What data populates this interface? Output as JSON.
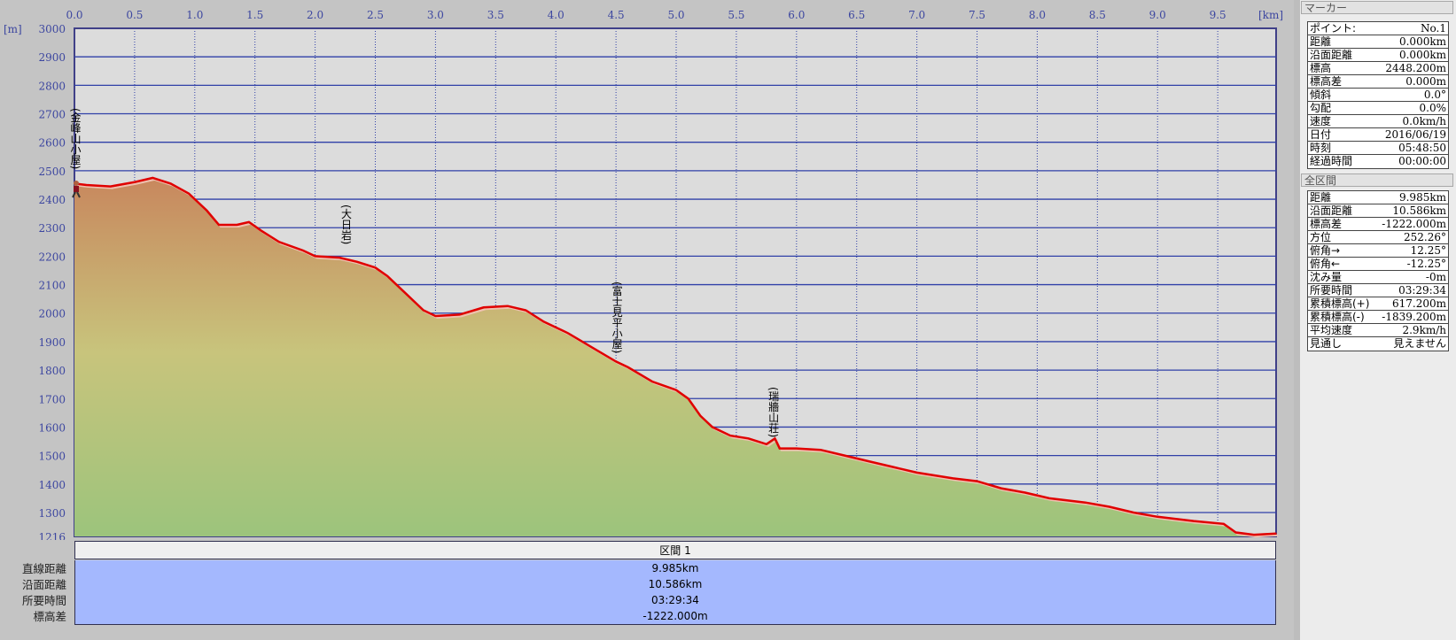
{
  "chart_data": {
    "type": "area",
    "title": "",
    "xlabel": "[km]",
    "ylabel": "[m]",
    "xlim": [
      0,
      9.985
    ],
    "ylim": [
      1216,
      3000
    ],
    "x_ticks": [
      "0.0",
      "0.5",
      "1.0",
      "1.5",
      "2.0",
      "2.5",
      "3.0",
      "3.5",
      "4.0",
      "4.5",
      "5.0",
      "5.5",
      "6.0",
      "6.5",
      "7.0",
      "7.5",
      "8.0",
      "8.5",
      "9.0",
      "9.5"
    ],
    "y_ticks": [
      "3000",
      "2900",
      "2800",
      "2700",
      "2600",
      "2500",
      "2400",
      "2300",
      "2200",
      "2100",
      "2000",
      "1900",
      "1800",
      "1700",
      "1600",
      "1500",
      "1400",
      "1300",
      "1216"
    ],
    "grid": true,
    "series": [
      {
        "name": "elevation",
        "x": [
          0,
          0.1,
          0.3,
          0.5,
          0.65,
          0.8,
          0.95,
          1.1,
          1.2,
          1.35,
          1.45,
          1.55,
          1.7,
          1.9,
          2.0,
          2.2,
          2.35,
          2.5,
          2.6,
          2.75,
          2.9,
          3.0,
          3.2,
          3.4,
          3.6,
          3.75,
          3.9,
          4.1,
          4.3,
          4.5,
          4.6,
          4.8,
          5.0,
          5.1,
          5.2,
          5.3,
          5.45,
          5.6,
          5.75,
          5.82,
          5.86,
          6.0,
          6.2,
          6.4,
          6.6,
          6.8,
          7.0,
          7.3,
          7.5,
          7.7,
          7.9,
          8.1,
          8.4,
          8.6,
          8.8,
          9.0,
          9.3,
          9.55,
          9.65,
          9.8,
          9.985
        ],
        "y": [
          2455,
          2450,
          2445,
          2460,
          2475,
          2455,
          2420,
          2360,
          2310,
          2310,
          2320,
          2290,
          2250,
          2220,
          2200,
          2195,
          2180,
          2160,
          2130,
          2070,
          2010,
          1990,
          1995,
          2020,
          2025,
          2010,
          1970,
          1930,
          1880,
          1830,
          1810,
          1760,
          1730,
          1700,
          1640,
          1600,
          1570,
          1560,
          1540,
          1560,
          1525,
          1525,
          1520,
          1500,
          1480,
          1460,
          1440,
          1420,
          1410,
          1385,
          1370,
          1350,
          1335,
          1320,
          1300,
          1285,
          1270,
          1260,
          1230,
          1222,
          1226
        ]
      }
    ],
    "annotations": [
      {
        "text": "(金峰山小屋)",
        "x": 0.0,
        "y": 2720
      },
      {
        "text": "(大日岩)",
        "x": 2.25,
        "y": 2380
      },
      {
        "text": "(富士見平小屋)",
        "x": 4.5,
        "y": 2110
      },
      {
        "text": "(瑞牆山荘)",
        "x": 5.8,
        "y": 1740
      }
    ],
    "colors": {
      "line": "#e00000",
      "grid": "#3040a8",
      "plot_bg": "#dcdcdc",
      "fill_top": "#c8845c",
      "fill_mid": "#c8c47c",
      "fill_bottom": "#9cc47c"
    }
  },
  "section": {
    "header": "区間 1",
    "labels": [
      "直線距離",
      "沿面距離",
      "所要時間",
      "標高差"
    ],
    "values": [
      "9.985km",
      "10.586km",
      "03:29:34",
      "-1222.000m"
    ]
  },
  "marker_panel": {
    "title": "マーカー",
    "rows": [
      {
        "label": "ポイント:",
        "value": "No.1"
      },
      {
        "label": "距離",
        "value": "0.000km"
      },
      {
        "label": "沿面距離",
        "value": "0.000km"
      },
      {
        "label": "標高",
        "value": "2448.200m"
      },
      {
        "label": "標高差",
        "value": "0.000m"
      },
      {
        "label": "傾斜",
        "value": "0.0°"
      },
      {
        "label": "勾配",
        "value": "0.0%"
      },
      {
        "label": "速度",
        "value": "0.0km/h"
      },
      {
        "label": "日付",
        "value": "2016/06/19"
      },
      {
        "label": "時刻",
        "value": "05:48:50"
      },
      {
        "label": "経過時間",
        "value": "00:00:00"
      }
    ]
  },
  "total_panel": {
    "title": "全区間",
    "rows": [
      {
        "label": "距離",
        "value": "9.985km"
      },
      {
        "label": "沿面距離",
        "value": "10.586km"
      },
      {
        "label": "標高差",
        "value": "-1222.000m"
      },
      {
        "label": "方位",
        "value": "252.26°"
      },
      {
        "label": "俯角→",
        "value": "12.25°"
      },
      {
        "label": "俯角←",
        "value": "-12.25°"
      },
      {
        "label": "沈み量",
        "value": "-0m"
      },
      {
        "label": "所要時間",
        "value": "03:29:34"
      },
      {
        "label": "累積標高(+)",
        "value": "617.200m"
      },
      {
        "label": "累積標高(-)",
        "value": "-1839.200m"
      },
      {
        "label": "平均速度",
        "value": "2.9km/h"
      },
      {
        "label": "見通し",
        "value": "見えません"
      }
    ]
  }
}
